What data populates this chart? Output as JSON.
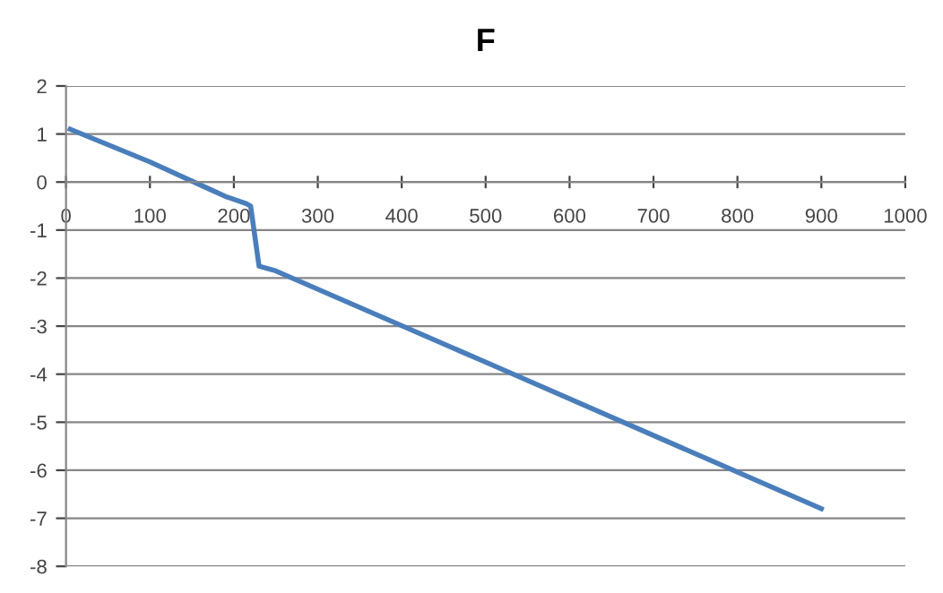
{
  "chart_data": {
    "type": "line",
    "title": "F",
    "color": "#4a7ebb",
    "x": [
      5,
      100,
      175,
      190,
      215,
      220,
      230,
      250,
      500,
      900
    ],
    "values": [
      1.1,
      0.42,
      -0.18,
      -0.3,
      -0.45,
      -0.5,
      -1.75,
      -1.85,
      -3.75,
      -6.8
    ],
    "xlim": [
      0,
      1000
    ],
    "xticks": [
      0,
      100,
      200,
      300,
      400,
      500,
      600,
      700,
      800,
      900,
      1000
    ],
    "ylim": [
      -8,
      2
    ],
    "yticks": [
      -8,
      -7,
      -6,
      -5,
      -4,
      -3,
      -2,
      -1,
      0,
      1,
      2
    ],
    "grid": "y",
    "marker": "none",
    "line_style": "solid",
    "legend": false
  }
}
